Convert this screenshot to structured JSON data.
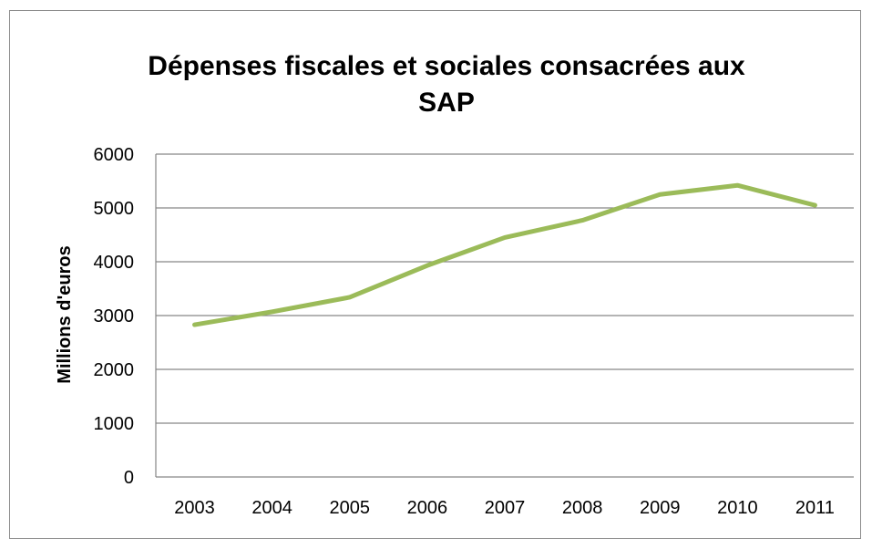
{
  "chart_data": {
    "type": "line",
    "title": "Dépenses fiscales et sociales consacrées aux SAP",
    "title_lines": [
      "Dépenses fiscales et sociales consacrées aux",
      "SAP"
    ],
    "xlabel": "",
    "ylabel": "Millions d'euros",
    "categories": [
      "2003",
      "2004",
      "2005",
      "2006",
      "2007",
      "2008",
      "2009",
      "2010",
      "2011"
    ],
    "series": [
      {
        "values": [
          2830,
          3070,
          3340,
          3930,
          4450,
          4770,
          5250,
          5420,
          5050
        ]
      }
    ],
    "ylim": [
      0,
      6000
    ],
    "yticks": [
      "0",
      "1000",
      "2000",
      "3000",
      "4000",
      "5000",
      "6000"
    ],
    "grid": true,
    "legend": "none",
    "colors": {
      "series": "#9bbb59",
      "grid": "#868686",
      "frame": "#8c8c8c"
    }
  }
}
